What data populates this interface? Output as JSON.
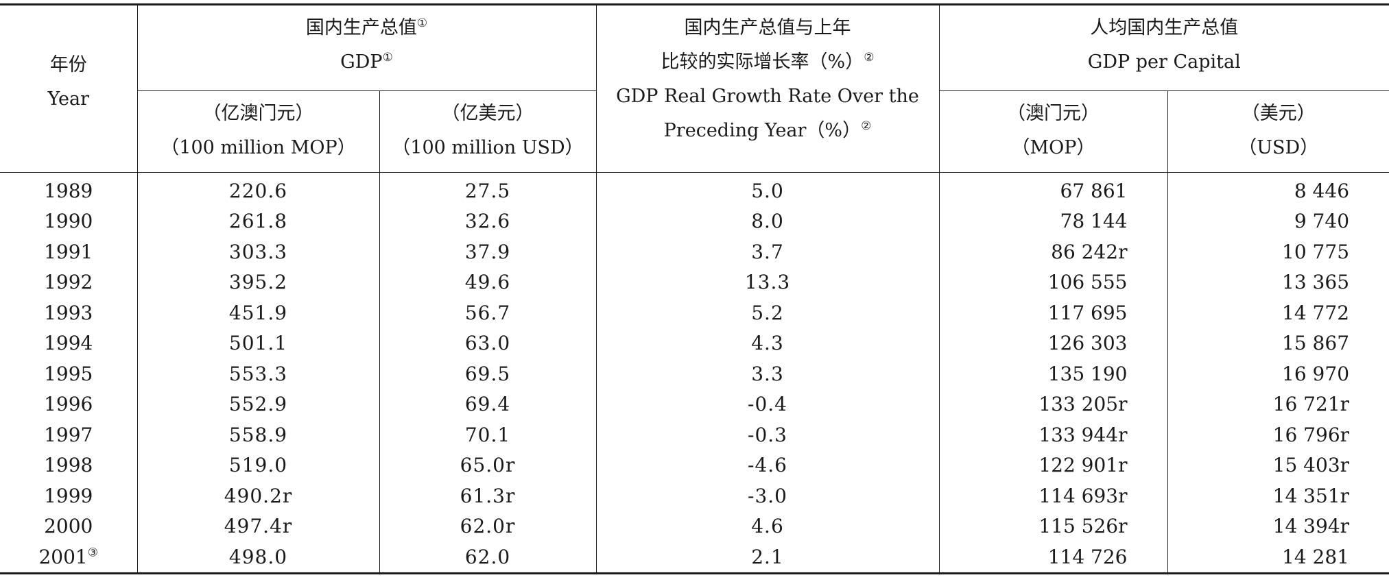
{
  "header": {
    "year_cn": "年份",
    "year_en": "Year",
    "gdp_cn": "国内生产总值",
    "gdp_cn_note": "①",
    "gdp_en": "GDP",
    "gdp_en_note": "①",
    "gdp_mop_cn": "（亿澳门元）",
    "gdp_mop_en": "（100 million MOP）",
    "gdp_usd_cn": "（亿美元）",
    "gdp_usd_en": "（100 million USD）",
    "growth_cn_1": "国内生产总值与上年",
    "growth_cn_2": "比较的实际增长率（%）",
    "growth_cn_note": "②",
    "growth_en_1": "GDP Real Growth Rate Over the",
    "growth_en_2": "Preceding Year（%）",
    "growth_en_note": "②",
    "pc_cn": "人均国内生产总值",
    "pc_en": "GDP per Capital",
    "pc_mop_cn": "（澳门元）",
    "pc_mop_en": "（MOP）",
    "pc_usd_cn": "（美元）",
    "pc_usd_en": "（USD）"
  },
  "rows": [
    {
      "year": "1989",
      "note": "",
      "mop": "220.6",
      "usd": "27.5",
      "growth": "5.0",
      "pc_mop": "67 861",
      "pc_usd": "8 446"
    },
    {
      "year": "1990",
      "note": "",
      "mop": "261.8",
      "usd": "32.6",
      "growth": "8.0",
      "pc_mop": "78 144",
      "pc_usd": "9 740"
    },
    {
      "year": "1991",
      "note": "",
      "mop": "303.3",
      "usd": "37.9",
      "growth": "3.7",
      "pc_mop": "86 242r",
      "pc_usd": "10 775"
    },
    {
      "year": "1992",
      "note": "",
      "mop": "395.2",
      "usd": "49.6",
      "growth": "13.3",
      "pc_mop": "106 555",
      "pc_usd": "13 365"
    },
    {
      "year": "1993",
      "note": "",
      "mop": "451.9",
      "usd": "56.7",
      "growth": "5.2",
      "pc_mop": "117 695",
      "pc_usd": "14 772"
    },
    {
      "year": "1994",
      "note": "",
      "mop": "501.1",
      "usd": "63.0",
      "growth": "4.3",
      "pc_mop": "126 303",
      "pc_usd": "15 867"
    },
    {
      "year": "1995",
      "note": "",
      "mop": "553.3",
      "usd": "69.5",
      "growth": "3.3",
      "pc_mop": "135 190",
      "pc_usd": "16 970"
    },
    {
      "year": "1996",
      "note": "",
      "mop": "552.9",
      "usd": "69.4",
      "growth": "-0.4",
      "pc_mop": "133 205r",
      "pc_usd": "16 721r"
    },
    {
      "year": "1997",
      "note": "",
      "mop": "558.9",
      "usd": "70.1",
      "growth": "-0.3",
      "pc_mop": "133 944r",
      "pc_usd": "16 796r"
    },
    {
      "year": "1998",
      "note": "",
      "mop": "519.0",
      "usd": "65.0r",
      "growth": "-4.6",
      "pc_mop": "122 901r",
      "pc_usd": "15 403r"
    },
    {
      "year": "1999",
      "note": "",
      "mop": "490.2r",
      "usd": "61.3r",
      "growth": "-3.0",
      "pc_mop": "114 693r",
      "pc_usd": "14 351r"
    },
    {
      "year": "2000",
      "note": "",
      "mop": "497.4r",
      "usd": "62.0r",
      "growth": "4.6",
      "pc_mop": "115 526r",
      "pc_usd": "14 394r"
    },
    {
      "year": "2001",
      "note": "③",
      "mop": "498.0",
      "usd": "62.0",
      "growth": "2.1",
      "pc_mop": "114 726",
      "pc_usd": "14 281"
    }
  ]
}
